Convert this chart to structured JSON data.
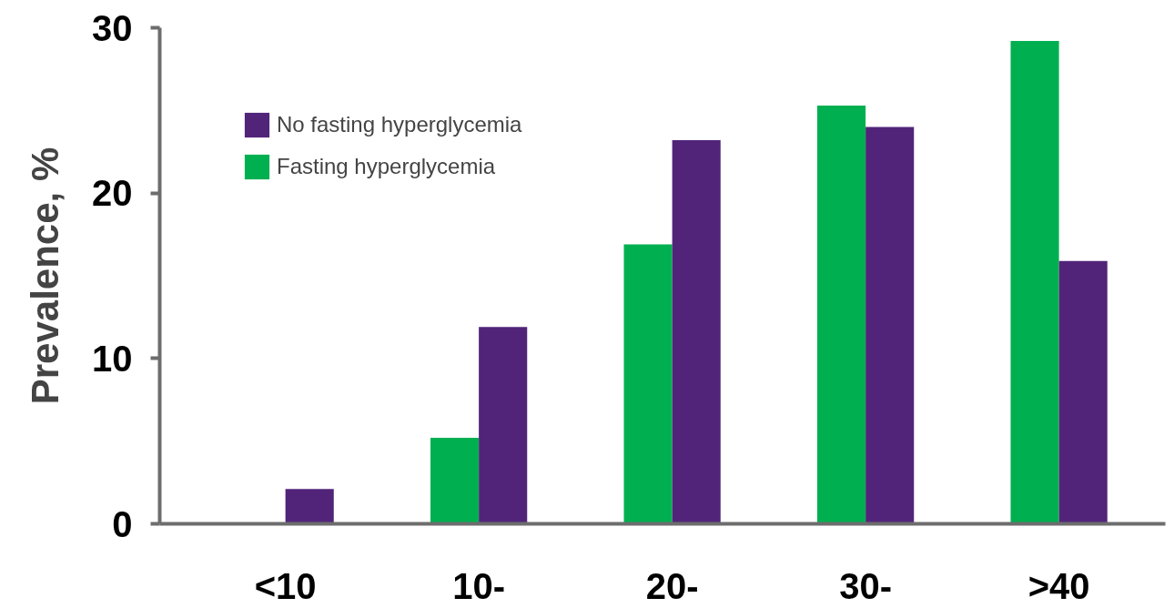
{
  "chart_data": {
    "type": "bar",
    "ylabel": "Prevalence, %",
    "categories": [
      "<10",
      "10-",
      "20-",
      "30-",
      ">40"
    ],
    "series": [
      {
        "name": "Fasting hyperglycemia",
        "color": "#00b050",
        "values": [
          null,
          5.2,
          16.9,
          25.3,
          29.2
        ]
      },
      {
        "name": "No fasting hyperglycemia",
        "color": "#512479",
        "values": [
          2.1,
          11.9,
          23.2,
          24.0,
          15.9
        ]
      }
    ],
    "ylim": [
      0,
      30
    ],
    "yticks": [
      0,
      10,
      20,
      30
    ],
    "grid": false,
    "legend": "top left"
  }
}
